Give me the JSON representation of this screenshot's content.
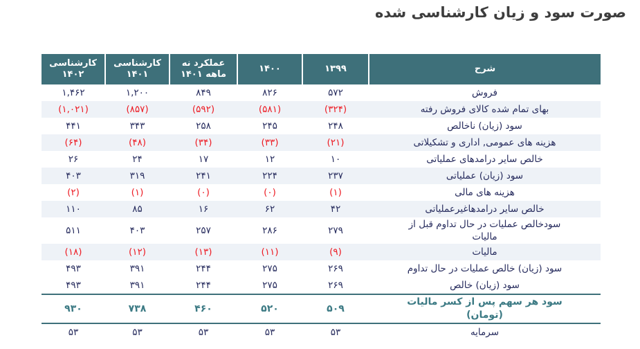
{
  "title": "صورت سود و زیان کارشناسی شده",
  "colors": {
    "header_teal": "#3e707a",
    "highlight_teal": "#3c7a84",
    "negative_red": "#ed1c24",
    "text_navy": "#272c5e",
    "alt_row": "#eef2f7"
  },
  "table": {
    "headers": [
      {
        "label": "شرح"
      },
      {
        "label": "۱۳۹۹"
      },
      {
        "label": "۱۴۰۰"
      },
      {
        "label": "عملکرد نه ماهه ۱۴۰۱"
      },
      {
        "label": "کارشناسی ۱۴۰۱"
      },
      {
        "label": "کارشناسی ۱۴۰۲"
      }
    ],
    "rows": [
      {
        "desc": "فروش",
        "values": [
          "۵۷۲",
          "۸۲۶",
          "۸۴۹",
          "۱,۲۰۰",
          "۱,۴۶۲"
        ],
        "negative": false,
        "style": "normal"
      },
      {
        "desc": "بهای تمام شده کالای فروش رفته",
        "values": [
          "(۳۲۴)",
          "(۵۸۱)",
          "(۵۹۲)",
          "(۸۵۷)",
          "(۱,۰۲۱)"
        ],
        "negative": true,
        "style": "normal"
      },
      {
        "desc": "سود (زیان) ناخالص",
        "values": [
          "۲۴۸",
          "۲۴۵",
          "۲۵۸",
          "۳۴۳",
          "۴۴۱"
        ],
        "negative": false,
        "style": "normal"
      },
      {
        "desc": "هزینه های عمومی, اداری و تشکیلاتی",
        "values": [
          "(۲۱)",
          "(۳۳)",
          "(۳۴)",
          "(۴۸)",
          "(۶۴)"
        ],
        "negative": true,
        "style": "normal"
      },
      {
        "desc": "خالص سایر درامدهای  عملیاتی",
        "values": [
          "۱۰",
          "۱۲",
          "۱۷",
          "۲۴",
          "۲۶"
        ],
        "negative": false,
        "style": "normal"
      },
      {
        "desc": "سود (زیان) عملیاتی",
        "values": [
          "۲۳۷",
          "۲۲۴",
          "۲۴۱",
          "۳۱۹",
          "۴۰۳"
        ],
        "negative": false,
        "style": "normal"
      },
      {
        "desc": "هزینه های مالی",
        "values": [
          "(۱)",
          "(۰)",
          "(۰)",
          "(۱)",
          "(۲)"
        ],
        "negative": true,
        "style": "normal"
      },
      {
        "desc": "خالص سایر درامدهاغیرعملیاتی",
        "values": [
          "۴۲",
          "۶۲",
          "۱۶",
          "۸۵",
          "۱۱۰"
        ],
        "negative": false,
        "style": "normal"
      },
      {
        "desc": "سودخالص عملیات در حال تداوم قبل از مالیات",
        "values": [
          "۲۷۹",
          "۲۸۶",
          "۲۵۷",
          "۴۰۳",
          "۵۱۱"
        ],
        "negative": false,
        "style": "normal"
      },
      {
        "desc": "مالیات",
        "values": [
          "(۹)",
          "(۱۱)",
          "(۱۳)",
          "(۱۲)",
          "(۱۸)"
        ],
        "negative": true,
        "style": "normal"
      },
      {
        "desc": "سود (زیان) خالص عملیات در حال تداوم",
        "values": [
          "۲۶۹",
          "۲۷۵",
          "۲۴۴",
          "۳۹۱",
          "۴۹۳"
        ],
        "negative": false,
        "style": "normal"
      },
      {
        "desc": "سود (زیان) خالص",
        "values": [
          "۲۶۹",
          "۲۷۵",
          "۲۴۴",
          "۳۹۱",
          "۴۹۳"
        ],
        "negative": false,
        "style": "normal"
      },
      {
        "desc": "سود هر سهم پس از کسر مالیات (تومان)",
        "values": [
          "۵۰۹",
          "۵۲۰",
          "۴۶۰",
          "۷۳۸",
          "۹۳۰"
        ],
        "negative": false,
        "style": "highlight"
      },
      {
        "desc": "سرمایه",
        "values": [
          "۵۳",
          "۵۳",
          "۵۳",
          "۵۳",
          "۵۳"
        ],
        "negative": false,
        "style": "normal"
      }
    ]
  }
}
